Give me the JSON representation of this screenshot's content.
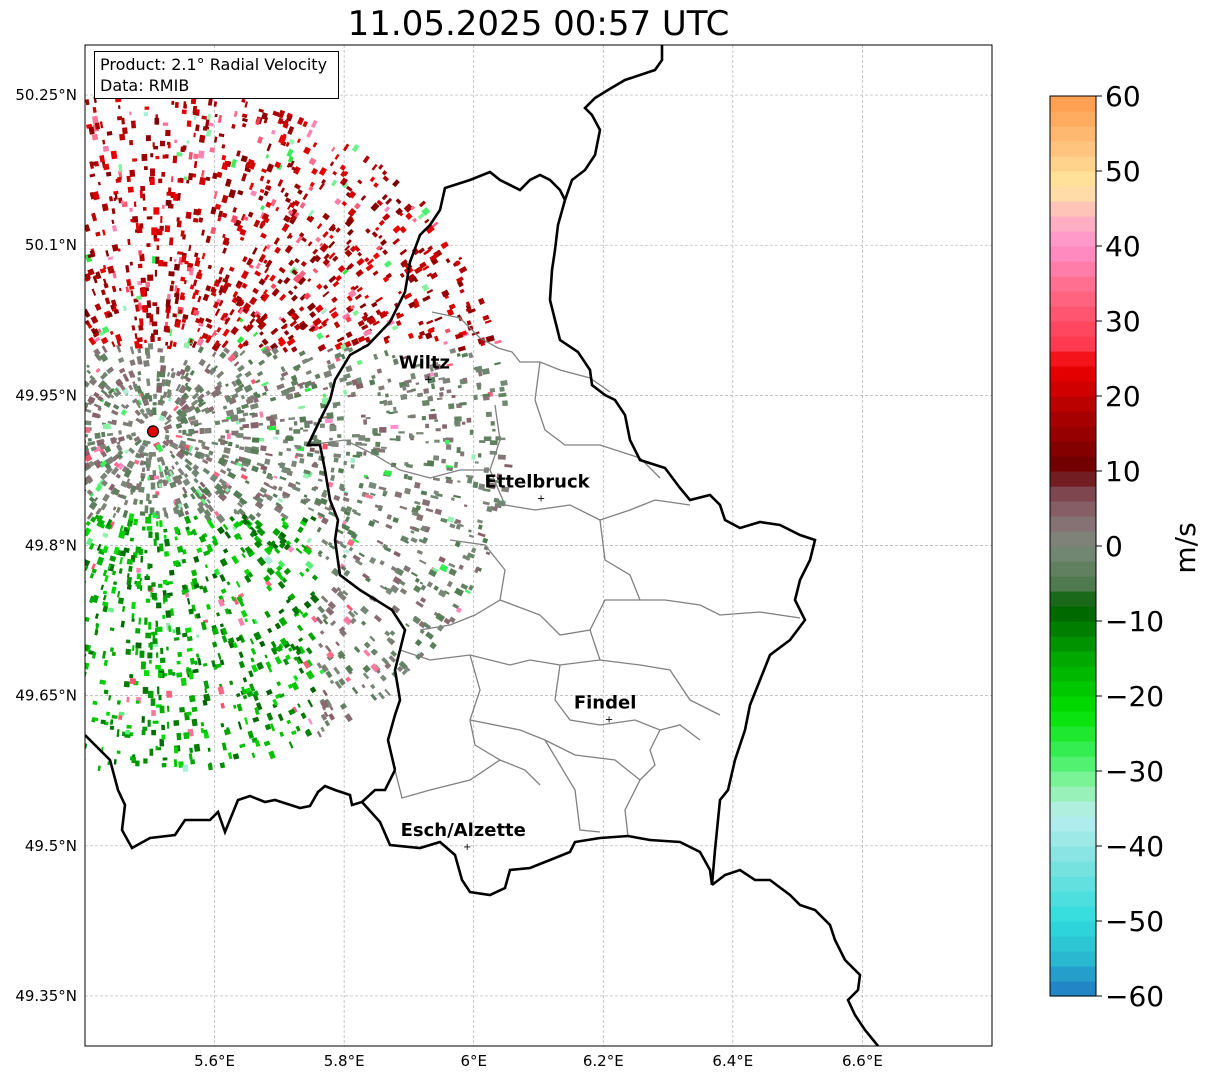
{
  "title": "11.05.2025 00:57 UTC",
  "info": {
    "product": "Product: 2.1° Radial Velocity",
    "source": "Data: RMIB"
  },
  "map": {
    "lon_range": [
      5.4,
      6.8
    ],
    "lat_range": [
      49.3,
      50.3
    ],
    "x_ticks": [
      {
        "value": 5.6,
        "label": "5.6°E"
      },
      {
        "value": 5.8,
        "label": "5.8°E"
      },
      {
        "value": 6.0,
        "label": "6°E"
      },
      {
        "value": 6.2,
        "label": "6.2°E"
      },
      {
        "value": 6.4,
        "label": "6.4°E"
      },
      {
        "value": 6.6,
        "label": "6.6°E"
      }
    ],
    "y_ticks": [
      {
        "value": 50.25,
        "label": "50.25°N"
      },
      {
        "value": 50.1,
        "label": "50.1°N"
      },
      {
        "value": 49.95,
        "label": "49.95°N"
      },
      {
        "value": 49.8,
        "label": "49.8°N"
      },
      {
        "value": 49.65,
        "label": "49.65°N"
      },
      {
        "value": 49.5,
        "label": "49.5°N"
      },
      {
        "value": 49.35,
        "label": "49.35°N"
      }
    ],
    "grid": true,
    "radar_site": {
      "lon": 5.505,
      "lat": 49.914,
      "color": "#e00000"
    },
    "cities": [
      {
        "name": "Wiltz",
        "lon": 5.93,
        "lat": 49.967
      },
      {
        "name": "Ettelbruck",
        "lon": 6.104,
        "lat": 49.848
      },
      {
        "name": "Findel",
        "lon": 6.209,
        "lat": 49.627
      },
      {
        "name": "Esch/Alzette",
        "lon": 5.99,
        "lat": 49.5
      }
    ]
  },
  "colorbar": {
    "label": "m/s",
    "min": -60,
    "max": 60,
    "ticks": [
      {
        "value": 60,
        "label": "60"
      },
      {
        "value": 50,
        "label": "50"
      },
      {
        "value": 40,
        "label": "40"
      },
      {
        "value": 30,
        "label": "30"
      },
      {
        "value": 20,
        "label": "20"
      },
      {
        "value": 10,
        "label": "10"
      },
      {
        "value": 0,
        "label": "0"
      },
      {
        "value": -10,
        "label": "−10"
      },
      {
        "value": -20,
        "label": "−20"
      },
      {
        "value": -30,
        "label": "−30"
      },
      {
        "value": -40,
        "label": "−40"
      },
      {
        "value": -50,
        "label": "−50"
      },
      {
        "value": -60,
        "label": "−60"
      }
    ],
    "stops": [
      {
        "value": -60,
        "color": "#1f78c4"
      },
      {
        "value": -55,
        "color": "#2ab8d0"
      },
      {
        "value": -50,
        "color": "#2edcdc"
      },
      {
        "value": -42,
        "color": "#7fe3e0"
      },
      {
        "value": -36,
        "color": "#b8eef0"
      },
      {
        "value": -32,
        "color": "#8ef2a8"
      },
      {
        "value": -28,
        "color": "#3ef060"
      },
      {
        "value": -22,
        "color": "#00e000"
      },
      {
        "value": -15,
        "color": "#00a800"
      },
      {
        "value": -8,
        "color": "#005f00"
      },
      {
        "value": -5,
        "color": "#4f7a4f"
      },
      {
        "value": 0,
        "color": "#7a8a7a"
      },
      {
        "value": 4,
        "color": "#8a6a72"
      },
      {
        "value": 8,
        "color": "#7a3a42"
      },
      {
        "value": 10,
        "color": "#6a0000"
      },
      {
        "value": 18,
        "color": "#b00000"
      },
      {
        "value": 24,
        "color": "#f00000"
      },
      {
        "value": 27,
        "color": "#ff3a50"
      },
      {
        "value": 35,
        "color": "#ff7090"
      },
      {
        "value": 40,
        "color": "#ff90cc"
      },
      {
        "value": 44,
        "color": "#ffb8c0"
      },
      {
        "value": 48,
        "color": "#ffe8a0"
      },
      {
        "value": 54,
        "color": "#ffbe78"
      },
      {
        "value": 60,
        "color": "#ff9a4a"
      }
    ]
  }
}
